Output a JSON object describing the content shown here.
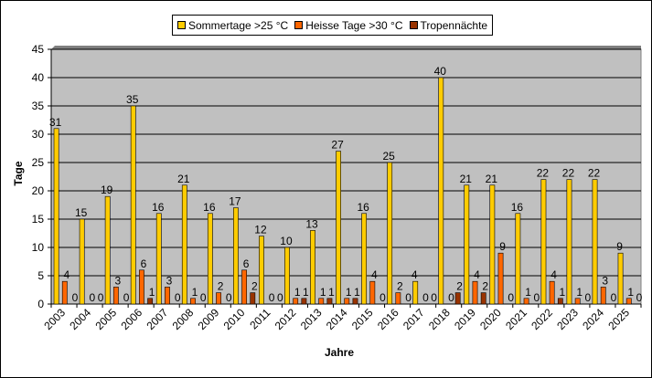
{
  "chart_data": {
    "type": "bar",
    "xlabel": "Jahre",
    "ylabel": "Tage",
    "ylim": [
      0,
      45
    ],
    "yticks": [
      0,
      5,
      10,
      15,
      20,
      25,
      30,
      35,
      40,
      45
    ],
    "grid": true,
    "legend_position": "top-center",
    "plot_background": "#C0C0C0",
    "categories": [
      "2003",
      "2004",
      "2005",
      "2006",
      "2007",
      "2008",
      "2009",
      "2010",
      "2011",
      "2012",
      "2013",
      "2014",
      "2015",
      "2016",
      "2017",
      "2018",
      "2019",
      "2020",
      "2021",
      "2022",
      "2023",
      "2024",
      "2025"
    ],
    "series": [
      {
        "name": "Sommertage >25 °C",
        "color": "#FFCC00",
        "values": [
          31,
          15,
          19,
          35,
          16,
          21,
          16,
          17,
          12,
          10,
          13,
          27,
          16,
          25,
          4,
          40,
          21,
          21,
          16,
          22,
          22,
          22,
          9
        ]
      },
      {
        "name": "Heisse Tage >30 °C",
        "color": "#FF6600",
        "values": [
          4,
          0,
          3,
          6,
          3,
          1,
          2,
          6,
          0,
          1,
          1,
          1,
          4,
          2,
          0,
          0,
          4,
          9,
          1,
          4,
          1,
          3,
          1
        ]
      },
      {
        "name": "Tropennächte",
        "color": "#993300",
        "values": [
          0,
          0,
          0,
          1,
          0,
          0,
          0,
          2,
          0,
          1,
          1,
          1,
          0,
          0,
          0,
          2,
          2,
          0,
          0,
          1,
          0,
          0,
          0
        ]
      }
    ]
  }
}
